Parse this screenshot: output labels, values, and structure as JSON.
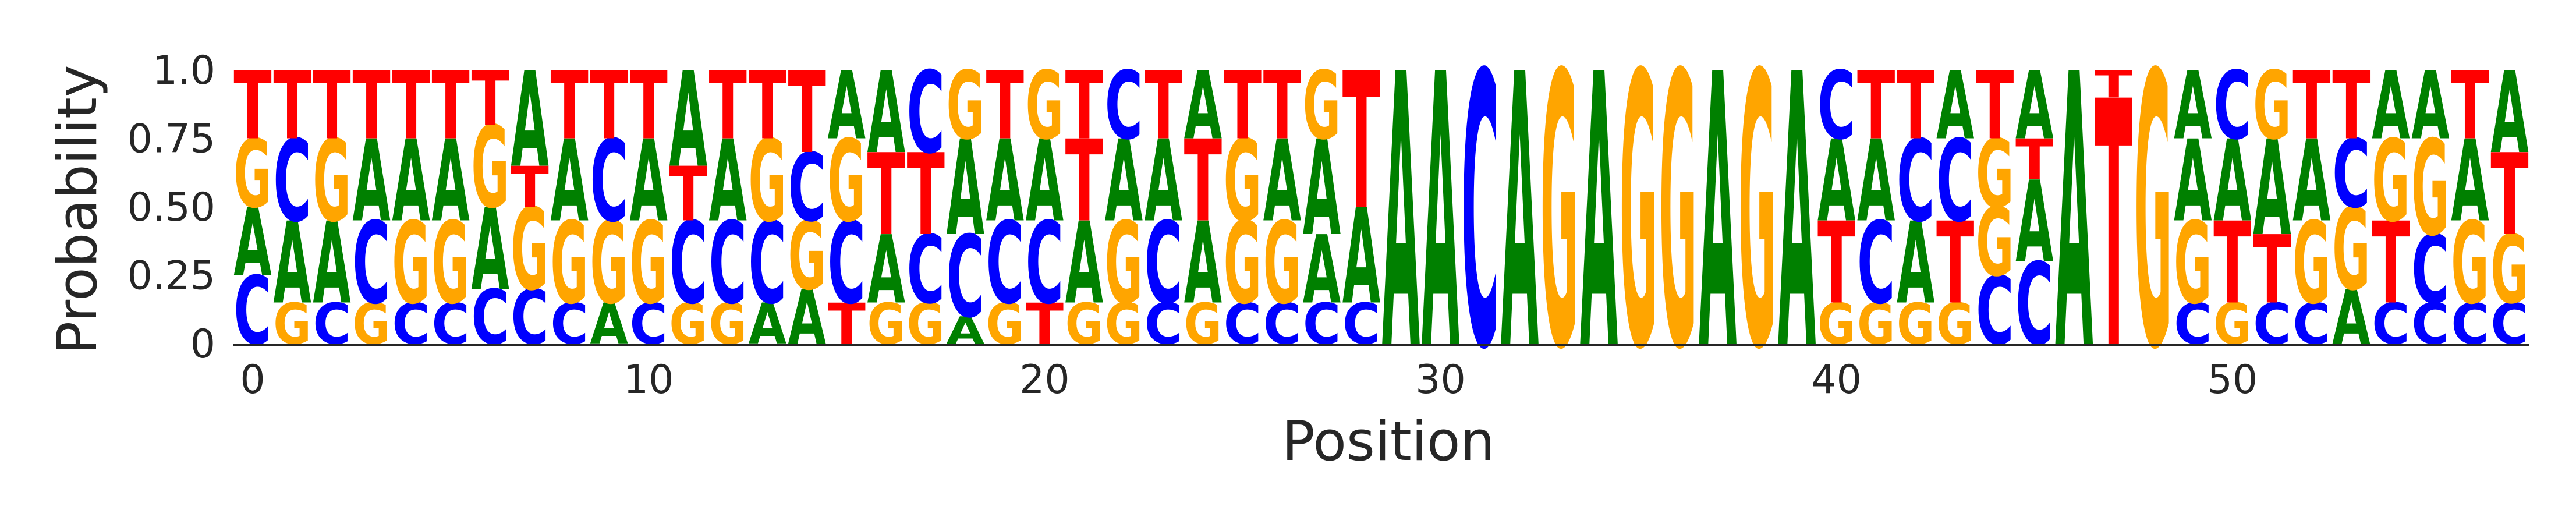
{
  "chart_data": {
    "type": "sequence-logo",
    "xlabel": "Position",
    "ylabel": "Probability",
    "ylim": [
      0,
      1
    ],
    "yticks": [
      0,
      0.25,
      0.5,
      0.75,
      1.0
    ],
    "ytick_labels": [
      "0",
      "0.25",
      "0.50",
      "0.75",
      "1.0"
    ],
    "xticks": [
      0,
      10,
      20,
      30,
      40,
      50
    ],
    "xtick_labels": [
      "0",
      "10",
      "20",
      "30",
      "40",
      "50"
    ],
    "colors": {
      "A": "#008000",
      "C": "#0000ff",
      "G": "#ffa500",
      "T": "#ff0000"
    },
    "positions": [
      {
        "x": 0,
        "stack": [
          [
            "C",
            0.25
          ],
          [
            "A",
            0.25
          ],
          [
            "G",
            0.25
          ],
          [
            "T",
            0.25
          ]
        ]
      },
      {
        "x": 1,
        "stack": [
          [
            "G",
            0.15
          ],
          [
            "A",
            0.3
          ],
          [
            "C",
            0.3
          ],
          [
            "T",
            0.25
          ]
        ]
      },
      {
        "x": 2,
        "stack": [
          [
            "C",
            0.15
          ],
          [
            "A",
            0.3
          ],
          [
            "G",
            0.3
          ],
          [
            "T",
            0.25
          ]
        ]
      },
      {
        "x": 3,
        "stack": [
          [
            "G",
            0.15
          ],
          [
            "C",
            0.3
          ],
          [
            "A",
            0.3
          ],
          [
            "T",
            0.25
          ]
        ]
      },
      {
        "x": 4,
        "stack": [
          [
            "C",
            0.15
          ],
          [
            "G",
            0.3
          ],
          [
            "A",
            0.3
          ],
          [
            "T",
            0.25
          ]
        ]
      },
      {
        "x": 5,
        "stack": [
          [
            "C",
            0.15
          ],
          [
            "G",
            0.3
          ],
          [
            "A",
            0.3
          ],
          [
            "T",
            0.25
          ]
        ]
      },
      {
        "x": 6,
        "stack": [
          [
            "C",
            0.2
          ],
          [
            "A",
            0.3
          ],
          [
            "G",
            0.3
          ],
          [
            "T",
            0.2
          ]
        ]
      },
      {
        "x": 7,
        "stack": [
          [
            "C",
            0.2
          ],
          [
            "G",
            0.3
          ],
          [
            "T",
            0.15
          ],
          [
            "A",
            0.35
          ]
        ]
      },
      {
        "x": 8,
        "stack": [
          [
            "C",
            0.15
          ],
          [
            "G",
            0.3
          ],
          [
            "A",
            0.3
          ],
          [
            "T",
            0.25
          ]
        ]
      },
      {
        "x": 9,
        "stack": [
          [
            "A",
            0.15
          ],
          [
            "G",
            0.3
          ],
          [
            "C",
            0.3
          ],
          [
            "T",
            0.25
          ]
        ]
      },
      {
        "x": 10,
        "stack": [
          [
            "C",
            0.15
          ],
          [
            "G",
            0.3
          ],
          [
            "A",
            0.3
          ],
          [
            "T",
            0.25
          ]
        ]
      },
      {
        "x": 11,
        "stack": [
          [
            "G",
            0.15
          ],
          [
            "C",
            0.3
          ],
          [
            "T",
            0.2
          ],
          [
            "A",
            0.35
          ]
        ]
      },
      {
        "x": 12,
        "stack": [
          [
            "G",
            0.15
          ],
          [
            "C",
            0.3
          ],
          [
            "A",
            0.3
          ],
          [
            "T",
            0.25
          ]
        ]
      },
      {
        "x": 13,
        "stack": [
          [
            "A",
            0.15
          ],
          [
            "C",
            0.3
          ],
          [
            "G",
            0.3
          ],
          [
            "T",
            0.25
          ]
        ]
      },
      {
        "x": 14,
        "stack": [
          [
            "A",
            0.2
          ],
          [
            "G",
            0.25
          ],
          [
            "C",
            0.25
          ],
          [
            "T",
            0.3
          ]
        ]
      },
      {
        "x": 15,
        "stack": [
          [
            "T",
            0.15
          ],
          [
            "C",
            0.3
          ],
          [
            "G",
            0.3
          ],
          [
            "A",
            0.25
          ]
        ]
      },
      {
        "x": 16,
        "stack": [
          [
            "G",
            0.15
          ],
          [
            "A",
            0.25
          ],
          [
            "T",
            0.3
          ],
          [
            "A",
            0.3
          ]
        ]
      },
      {
        "x": 17,
        "stack": [
          [
            "G",
            0.15
          ],
          [
            "C",
            0.25
          ],
          [
            "T",
            0.3
          ],
          [
            "C",
            0.3
          ]
        ]
      },
      {
        "x": 18,
        "stack": [
          [
            "A",
            0.1
          ],
          [
            "C",
            0.3
          ],
          [
            "A",
            0.35
          ],
          [
            "G",
            0.25
          ]
        ]
      },
      {
        "x": 19,
        "stack": [
          [
            "G",
            0.15
          ],
          [
            "C",
            0.3
          ],
          [
            "A",
            0.3
          ],
          [
            "T",
            0.25
          ]
        ]
      },
      {
        "x": 20,
        "stack": [
          [
            "T",
            0.15
          ],
          [
            "C",
            0.3
          ],
          [
            "A",
            0.3
          ],
          [
            "G",
            0.25
          ]
        ]
      },
      {
        "x": 21,
        "stack": [
          [
            "G",
            0.15
          ],
          [
            "A",
            0.3
          ],
          [
            "T",
            0.3
          ],
          [
            "T",
            0.25
          ]
        ]
      },
      {
        "x": 22,
        "stack": [
          [
            "G",
            0.15
          ],
          [
            "G",
            0.3
          ],
          [
            "A",
            0.3
          ],
          [
            "C",
            0.25
          ]
        ]
      },
      {
        "x": 23,
        "stack": [
          [
            "C",
            0.15
          ],
          [
            "C",
            0.3
          ],
          [
            "A",
            0.3
          ],
          [
            "T",
            0.25
          ]
        ]
      },
      {
        "x": 24,
        "stack": [
          [
            "G",
            0.15
          ],
          [
            "A",
            0.3
          ],
          [
            "T",
            0.3
          ],
          [
            "A",
            0.25
          ]
        ]
      },
      {
        "x": 25,
        "stack": [
          [
            "C",
            0.15
          ],
          [
            "G",
            0.3
          ],
          [
            "G",
            0.3
          ],
          [
            "T",
            0.25
          ]
        ]
      },
      {
        "x": 26,
        "stack": [
          [
            "C",
            0.15
          ],
          [
            "G",
            0.3
          ],
          [
            "A",
            0.3
          ],
          [
            "T",
            0.25
          ]
        ]
      },
      {
        "x": 27,
        "stack": [
          [
            "C",
            0.15
          ],
          [
            "A",
            0.25
          ],
          [
            "A",
            0.35
          ],
          [
            "G",
            0.25
          ]
        ]
      },
      {
        "x": 28,
        "stack": [
          [
            "C",
            0.15
          ],
          [
            "A",
            0.35
          ],
          [
            "T",
            0.5
          ]
        ]
      },
      {
        "x": 29,
        "stack": [
          [
            "A",
            1.0
          ]
        ]
      },
      {
        "x": 30,
        "stack": [
          [
            "A",
            1.0
          ]
        ]
      },
      {
        "x": 31,
        "stack": [
          [
            "C",
            1.0
          ]
        ]
      },
      {
        "x": 32,
        "stack": [
          [
            "A",
            1.0
          ]
        ]
      },
      {
        "x": 33,
        "stack": [
          [
            "G",
            1.0
          ]
        ]
      },
      {
        "x": 34,
        "stack": [
          [
            "A",
            1.0
          ]
        ]
      },
      {
        "x": 35,
        "stack": [
          [
            "G",
            1.0
          ]
        ]
      },
      {
        "x": 36,
        "stack": [
          [
            "G",
            1.0
          ]
        ]
      },
      {
        "x": 37,
        "stack": [
          [
            "A",
            1.0
          ]
        ]
      },
      {
        "x": 38,
        "stack": [
          [
            "G",
            1.0
          ]
        ]
      },
      {
        "x": 39,
        "stack": [
          [
            "A",
            1.0
          ]
        ]
      },
      {
        "x": 40,
        "stack": [
          [
            "G",
            0.15
          ],
          [
            "T",
            0.3
          ],
          [
            "A",
            0.3
          ],
          [
            "C",
            0.25
          ]
        ]
      },
      {
        "x": 41,
        "stack": [
          [
            "G",
            0.15
          ],
          [
            "C",
            0.3
          ],
          [
            "A",
            0.3
          ],
          [
            "T",
            0.25
          ]
        ]
      },
      {
        "x": 42,
        "stack": [
          [
            "G",
            0.15
          ],
          [
            "A",
            0.3
          ],
          [
            "C",
            0.3
          ],
          [
            "T",
            0.25
          ]
        ]
      },
      {
        "x": 43,
        "stack": [
          [
            "G",
            0.15
          ],
          [
            "T",
            0.3
          ],
          [
            "C",
            0.3
          ],
          [
            "A",
            0.25
          ]
        ]
      },
      {
        "x": 44,
        "stack": [
          [
            "C",
            0.25
          ],
          [
            "G",
            0.25
          ],
          [
            "G",
            0.25
          ],
          [
            "T",
            0.25
          ]
        ]
      },
      {
        "x": 45,
        "stack": [
          [
            "C",
            0.3
          ],
          [
            "A",
            0.3
          ],
          [
            "T",
            0.15
          ],
          [
            "A",
            0.25
          ]
        ]
      },
      {
        "x": 46,
        "stack": [
          [
            "A",
            1.0
          ]
        ]
      },
      {
        "x": 47,
        "stack": [
          [
            "T",
            0.9
          ],
          [
            "T",
            0.1
          ]
        ]
      },
      {
        "x": 48,
        "stack": [
          [
            "G",
            1.0
          ]
        ]
      },
      {
        "x": 49,
        "stack": [
          [
            "C",
            0.15
          ],
          [
            "G",
            0.3
          ],
          [
            "A",
            0.3
          ],
          [
            "A",
            0.25
          ]
        ]
      },
      {
        "x": 50,
        "stack": [
          [
            "G",
            0.15
          ],
          [
            "T",
            0.3
          ],
          [
            "A",
            0.3
          ],
          [
            "C",
            0.25
          ]
        ]
      },
      {
        "x": 51,
        "stack": [
          [
            "C",
            0.15
          ],
          [
            "T",
            0.25
          ],
          [
            "A",
            0.35
          ],
          [
            "G",
            0.25
          ]
        ]
      },
      {
        "x": 52,
        "stack": [
          [
            "C",
            0.15
          ],
          [
            "G",
            0.3
          ],
          [
            "A",
            0.3
          ],
          [
            "T",
            0.25
          ]
        ]
      },
      {
        "x": 53,
        "stack": [
          [
            "A",
            0.2
          ],
          [
            "G",
            0.3
          ],
          [
            "C",
            0.25
          ],
          [
            "T",
            0.25
          ]
        ]
      },
      {
        "x": 54,
        "stack": [
          [
            "C",
            0.15
          ],
          [
            "T",
            0.3
          ],
          [
            "G",
            0.3
          ],
          [
            "A",
            0.25
          ]
        ]
      },
      {
        "x": 55,
        "stack": [
          [
            "C",
            0.15
          ],
          [
            "C",
            0.25
          ],
          [
            "G",
            0.35
          ],
          [
            "A",
            0.25
          ]
        ]
      },
      {
        "x": 56,
        "stack": [
          [
            "C",
            0.15
          ],
          [
            "G",
            0.3
          ],
          [
            "A",
            0.3
          ],
          [
            "T",
            0.25
          ]
        ]
      },
      {
        "x": 57,
        "stack": [
          [
            "C",
            0.15
          ],
          [
            "G",
            0.25
          ],
          [
            "T",
            0.3
          ],
          [
            "A",
            0.3
          ]
        ]
      }
    ]
  }
}
